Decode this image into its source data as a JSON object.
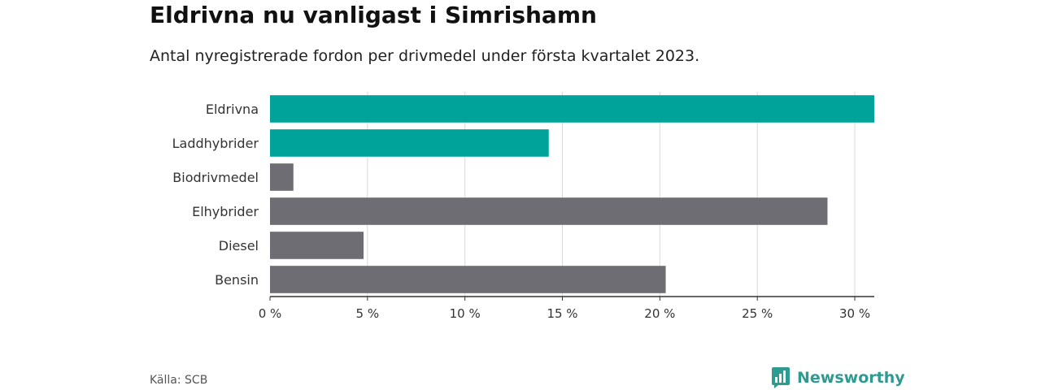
{
  "header": {
    "title": "Eldrivna nu vanligast i Simrishamn",
    "subtitle": "Antal nyregistrerade fordon per drivmedel under första kvartalet 2023."
  },
  "footer": {
    "source": "Källa: SCB",
    "brand": "Newsworthy",
    "brand_icon": "bar-chart-logo-icon"
  },
  "colors": {
    "highlight": "#00a39a",
    "default": "#6e6d73",
    "brand": "#2f9a8f"
  },
  "chart_data": {
    "type": "bar",
    "orientation": "horizontal",
    "categories": [
      "Eldrivna",
      "Laddhybrider",
      "Biodrivmedel",
      "Elhybrider",
      "Diesel",
      "Bensin"
    ],
    "values": [
      31.0,
      14.3,
      1.2,
      28.6,
      4.8,
      20.3
    ],
    "highlighted": [
      true,
      true,
      false,
      false,
      false,
      false
    ],
    "xlim": [
      0,
      31
    ],
    "x_ticks": [
      0,
      5,
      10,
      15,
      20,
      25,
      30
    ],
    "x_tick_labels": [
      "0 %",
      "5 %",
      "10 %",
      "15 %",
      "20 %",
      "25 %",
      "30 %"
    ],
    "grid": "vertical",
    "legend": "none"
  }
}
